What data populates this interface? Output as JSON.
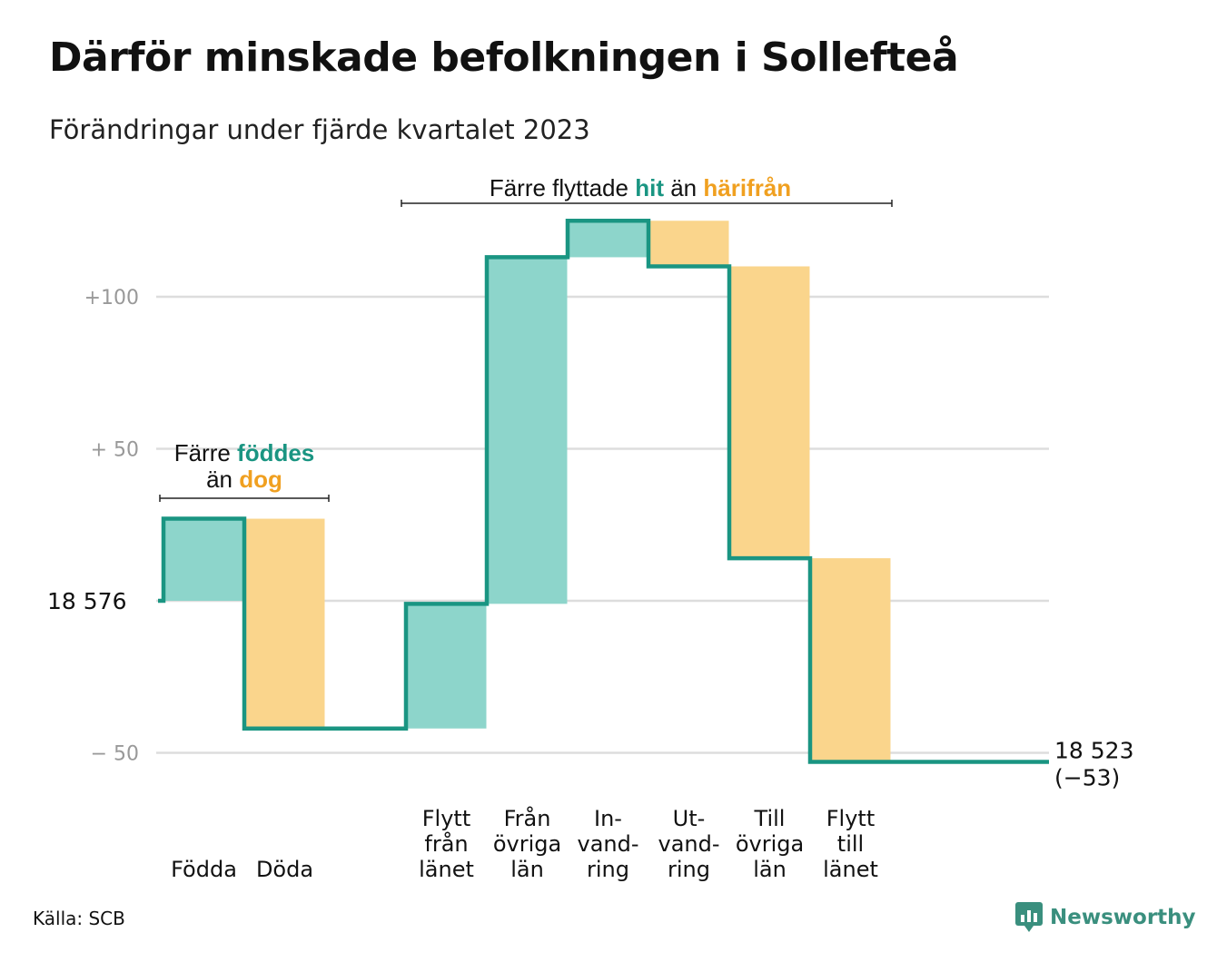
{
  "title": "Därför minskade befolkningen i Sollefteå",
  "subtitle": "Förändringar under fjärde kvartalet 2023",
  "source": "Källa: SCB",
  "brand": "Newsworthy",
  "colors": {
    "increase": "#8dd5cb",
    "decrease": "#fad58c",
    "line": "#1a9582",
    "teal_text": "#1a9582",
    "orange_text": "#f0a020",
    "grid": "#dddddd",
    "tick_text": "#999999"
  },
  "chart_data": {
    "type": "waterfall",
    "baseline_label": "18  576",
    "end_label": "18 523",
    "end_change": "(−53)",
    "y_ticks": [
      {
        "value": 100,
        "label": "+100"
      },
      {
        "value": 50,
        "label": "+  50"
      },
      {
        "value": 0,
        "label": ""
      },
      {
        "value": -50,
        "label": "−  50"
      }
    ],
    "ylim": [
      -62,
      125
    ],
    "steps": [
      {
        "key": "fodda",
        "label_lines": [
          "Födda"
        ],
        "delta": 27,
        "kind": "increase"
      },
      {
        "key": "doda",
        "label_lines": [
          "Döda"
        ],
        "delta": -69,
        "kind": "decrease"
      },
      {
        "key": "gap",
        "label_lines": [],
        "delta": 0,
        "kind": "none"
      },
      {
        "key": "flytt_fran_lanet",
        "label_lines": [
          "Flytt",
          "från",
          "länet"
        ],
        "delta": 41,
        "kind": "increase"
      },
      {
        "key": "fran_ovriga_lan",
        "label_lines": [
          "Från",
          "övriga",
          "län"
        ],
        "delta": 114,
        "kind": "increase"
      },
      {
        "key": "invandring",
        "label_lines": [
          "In-",
          "vand-",
          "ring"
        ],
        "delta": 12,
        "kind": "increase"
      },
      {
        "key": "utvandring",
        "label_lines": [
          "Ut-",
          "vand-",
          "ring"
        ],
        "delta": -15,
        "kind": "decrease"
      },
      {
        "key": "till_ovriga_lan",
        "label_lines": [
          "Till",
          "övriga",
          "län"
        ],
        "delta": -96,
        "kind": "decrease"
      },
      {
        "key": "flytt_till_lanet",
        "label_lines": [
          "Flytt",
          "till",
          "länet"
        ],
        "delta": -67,
        "kind": "decrease"
      }
    ],
    "annotations": [
      {
        "key": "birth",
        "line1_parts": [
          {
            "text": "Färre ",
            "color": "dark"
          },
          {
            "text": "föddes",
            "color": "teal"
          }
        ],
        "line2_parts": [
          {
            "text": "än ",
            "color": "dark"
          },
          {
            "text": "dog",
            "color": "orange"
          }
        ]
      },
      {
        "key": "migration",
        "line1_parts": [
          {
            "text": "Färre flyttade ",
            "color": "dark"
          },
          {
            "text": "hit",
            "color": "teal"
          },
          {
            "text": " än ",
            "color": "dark"
          },
          {
            "text": "härifrån",
            "color": "orange"
          }
        ]
      }
    ]
  }
}
